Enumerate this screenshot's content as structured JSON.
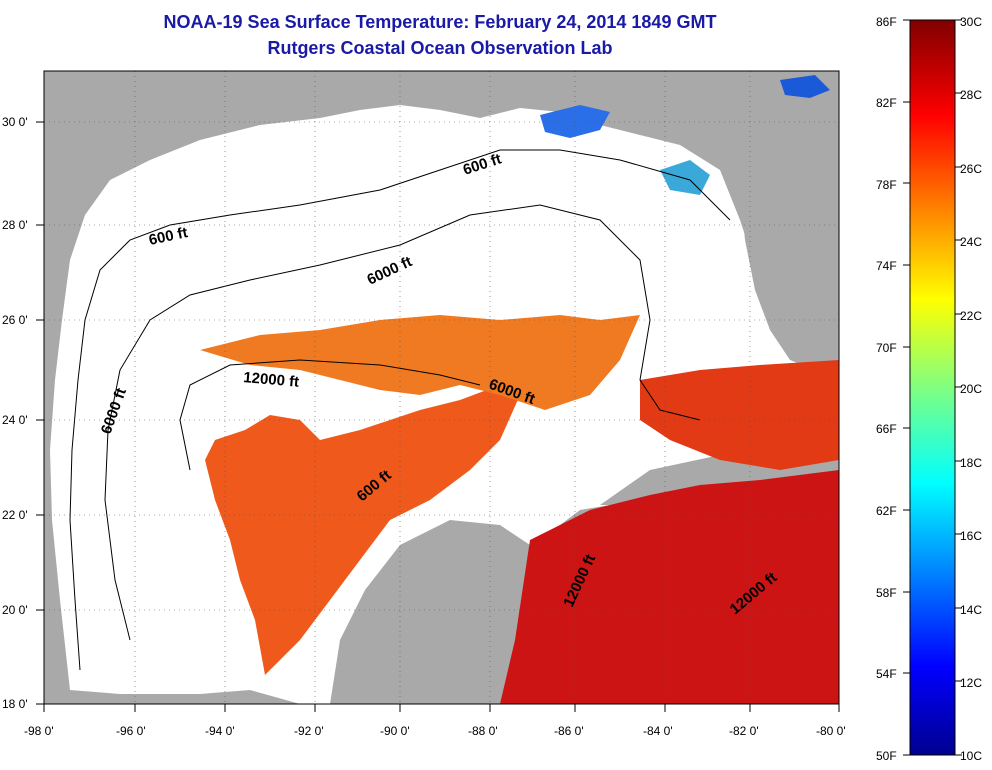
{
  "title": {
    "line1": "NOAA-19 Sea Surface Temperature:  February 24, 2014 1849 GMT",
    "line2": "Rutgers Coastal Ocean Observation Lab"
  },
  "map": {
    "lon_labels": [
      "-98 0'",
      "-96 0'",
      "-94 0'",
      "-92 0'",
      "-90 0'",
      "-88 0'",
      "-86 0'",
      "-84 0'",
      "-82 0'",
      "-80 0'"
    ],
    "lat_labels": [
      "30 0'",
      "28 0'",
      "26 0'",
      "24 0'",
      "22 0'",
      "20 0'",
      "18 0'"
    ],
    "contour_labels": [
      "600 ft",
      "600 ft",
      "6000 ft",
      "6000 ft",
      "12000 ft",
      "6000 ft",
      "600 ft",
      "12000 ft",
      "12000 ft"
    ],
    "colors": {
      "land": "#a9a9a9",
      "no_data": "#ffffff",
      "warm": "#e8401a",
      "hot": "#d01010",
      "orange": "#ff7a1a"
    }
  },
  "colorbar": {
    "f_labels": [
      "86F",
      "82F",
      "78F",
      "74F",
      "70F",
      "66F",
      "62F",
      "58F",
      "54F",
      "50F"
    ],
    "c_labels": [
      "30C",
      "28C",
      "26C",
      "24C",
      "22C",
      "20C",
      "18C",
      "16C",
      "14C",
      "12C",
      "10C"
    ]
  }
}
